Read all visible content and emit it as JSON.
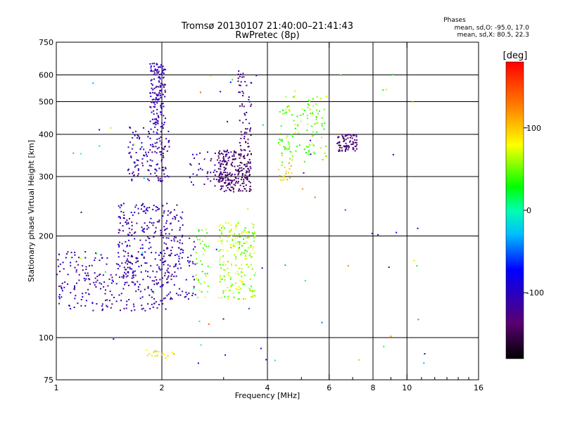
{
  "chart_data": {
    "type": "scatter",
    "title": "Tromsø 20130107 21:40:00–21:41:43",
    "subtitle": "RwPretec (8p)",
    "xlabel": "Frequency [MHz]",
    "ylabel": "Stationary phase Virtual Height [km]",
    "x_scale": "log",
    "y_scale": "log",
    "xlim": [
      1,
      16
    ],
    "ylim": [
      75,
      750
    ],
    "x_ticks": [
      1,
      2,
      4,
      6,
      8,
      10,
      16
    ],
    "x_tick_labels": [
      "1",
      "2",
      "4",
      "6",
      "8",
      "10",
      "16"
    ],
    "x_grid": [
      2,
      4,
      6,
      8,
      10
    ],
    "y_ticks": [
      75,
      100,
      200,
      300,
      400,
      500,
      600,
      750
    ],
    "y_tick_labels": [
      "75",
      "100",
      "200",
      "300",
      "400",
      "500",
      "600",
      "750"
    ],
    "y_grid": [
      100,
      200,
      300,
      400,
      500,
      600
    ],
    "grid": true,
    "phases_info": {
      "title": "Phases",
      "line_o": "mean, sd,O: -95.0, 17.0",
      "line_x": "mean, sd,X:  80.5, 22.3"
    },
    "colorbar": {
      "label": "[deg]",
      "range": [
        -180,
        180
      ],
      "ticks": [
        100,
        0,
        -100
      ],
      "tick_labels": [
        "100",
        "0",
        "-100"
      ],
      "colormap": "rainbow"
    },
    "clusters": [
      {
        "fmin": 1.6,
        "fmax": 2.1,
        "hmin": 290,
        "hmax": 420,
        "phase": -112,
        "count": 140
      },
      {
        "fmin": 1.85,
        "fmax": 2.05,
        "hmin": 420,
        "hmax": 650,
        "phase": -110,
        "count": 150
      },
      {
        "fmin": 1.0,
        "fmax": 2.1,
        "hmin": 120,
        "hmax": 180,
        "phase": -112,
        "count": 260
      },
      {
        "fmin": 1.5,
        "fmax": 2.3,
        "hmin": 150,
        "hmax": 250,
        "phase": -110,
        "count": 230
      },
      {
        "fmin": 2.0,
        "fmax": 2.5,
        "hmin": 130,
        "hmax": 200,
        "phase": -115,
        "count": 70
      },
      {
        "fmin": 2.5,
        "fmax": 2.75,
        "hmin": 130,
        "hmax": 210,
        "phase": 55,
        "count": 40
      },
      {
        "fmin": 2.9,
        "fmax": 3.7,
        "hmin": 130,
        "hmax": 220,
        "phase": 60,
        "count": 200
      },
      {
        "fmin": 2.9,
        "fmax": 3.6,
        "hmin": 270,
        "hmax": 360,
        "phase": -140,
        "count": 220
      },
      {
        "fmin": 3.3,
        "fmax": 3.6,
        "hmin": 360,
        "hmax": 620,
        "phase": -130,
        "count": 60
      },
      {
        "fmin": 2.4,
        "fmax": 3.1,
        "hmin": 280,
        "hmax": 360,
        "phase": -115,
        "count": 60
      },
      {
        "fmin": 4.3,
        "fmax": 5.9,
        "hmin": 330,
        "hmax": 520,
        "phase": 50,
        "count": 120
      },
      {
        "fmin": 6.3,
        "fmax": 7.2,
        "hmin": 355,
        "hmax": 400,
        "phase": -135,
        "count": 80
      },
      {
        "fmin": 4.3,
        "fmax": 4.7,
        "hmin": 290,
        "hmax": 330,
        "phase": 95,
        "count": 20
      },
      {
        "fmin": 1.8,
        "fmax": 2.2,
        "hmin": 87,
        "hmax": 92,
        "phase": 90,
        "count": 20
      },
      {
        "fmin": 1.0,
        "fmax": 12.0,
        "hmin": 80,
        "hmax": 650,
        "phase": 0,
        "count": 70
      }
    ]
  },
  "colors": {
    "background": "#ffffff",
    "grid": "#000000",
    "axis": "#000000"
  }
}
